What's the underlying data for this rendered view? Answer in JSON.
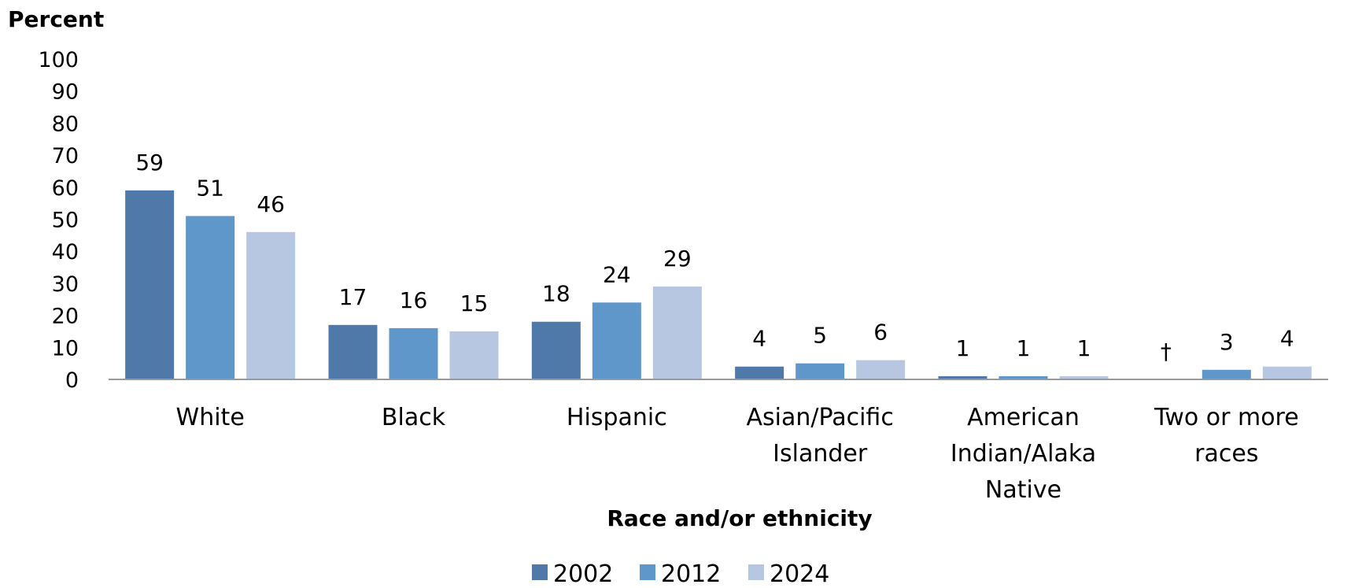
{
  "chart_data": {
    "type": "bar",
    "title": "",
    "ylabel": "Percent",
    "xlabel": "Race and/or ethnicity",
    "ylim": [
      0,
      100
    ],
    "yticks": [
      0,
      10,
      20,
      30,
      40,
      50,
      60,
      70,
      80,
      90,
      100
    ],
    "grid": false,
    "legend_position": "bottom",
    "categories": [
      [
        "White"
      ],
      [
        "Black"
      ],
      [
        "Hispanic"
      ],
      [
        "Asian/Pacific",
        "Islander"
      ],
      [
        "American",
        "Indian/Alaka",
        "Native"
      ],
      [
        "Two or more",
        "races"
      ]
    ],
    "series": [
      {
        "name": "2002",
        "color": "#4F79A8",
        "values": [
          59,
          17,
          18,
          4,
          1,
          null
        ],
        "labels": [
          "59",
          "17",
          "18",
          "4",
          "1",
          "†"
        ]
      },
      {
        "name": "2012",
        "color": "#6097CB",
        "values": [
          51,
          16,
          24,
          5,
          1,
          3
        ],
        "labels": [
          "51",
          "16",
          "24",
          "5",
          "1",
          "3"
        ]
      },
      {
        "name": "2024",
        "color": "#B7C6E1",
        "values": [
          46,
          15,
          29,
          6,
          1,
          4
        ],
        "labels": [
          "46",
          "15",
          "29",
          "6",
          "1",
          "4"
        ]
      }
    ]
  }
}
